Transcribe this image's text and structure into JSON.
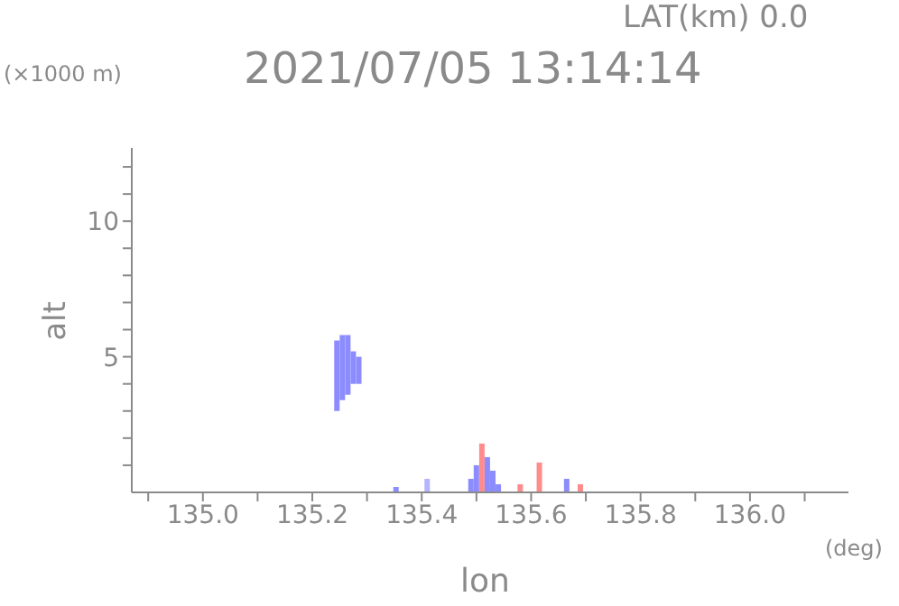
{
  "chart_data": {
    "type": "bar",
    "title": "2021/07/05 13:14:14",
    "subtitle": "LAT(km) 0.0",
    "xlabel": "lon",
    "ylabel": "alt",
    "annotations": [
      "(×1000 m)",
      "(deg)"
    ],
    "x": [
      135.245,
      135.255,
      135.265,
      135.275,
      135.285,
      135.353,
      135.41,
      135.49,
      135.5,
      135.51,
      135.52,
      135.53,
      135.54,
      135.58,
      135.615,
      135.665,
      135.69
    ],
    "base": [
      3.0,
      3.4,
      3.6,
      4.0,
      4.0,
      0,
      0,
      0,
      0,
      0,
      0,
      0,
      0,
      0,
      0,
      0,
      0
    ],
    "values": [
      2.6,
      2.4,
      2.2,
      1.2,
      1.0,
      0.2,
      0.5,
      0.5,
      1.0,
      1.8,
      1.3,
      0.8,
      0.3,
      0.3,
      1.1,
      0.5,
      0.3
    ],
    "colors": [
      "#8c8cff",
      "#8c8cff",
      "#8c8cff",
      "#8c8cff",
      "#8c8cff",
      "#8c8cff",
      "#b4b4ff",
      "#8c8cff",
      "#8c8cff",
      "#ff8c8c",
      "#8c8cff",
      "#8c8cff",
      "#8c8cff",
      "#ff8c8c",
      "#ff8c8c",
      "#8c8cff",
      "#ff8c8c"
    ],
    "xlim": [
      134.87,
      136.18
    ],
    "xticks": [
      {
        "value": 134.9,
        "label": null
      },
      {
        "value": 135.0,
        "label": "135.0"
      },
      {
        "value": 135.1,
        "label": null
      },
      135.2,
      {
        "value": 135.3,
        "label": null
      },
      135.4,
      {
        "value": 135.5,
        "label": null
      },
      135.6,
      {
        "value": 135.7,
        "label": null
      },
      135.8,
      {
        "value": 135.9,
        "label": null
      },
      {
        "value": 136.0,
        "label": "136.0"
      },
      {
        "value": 136.1,
        "label": null
      }
    ],
    "ylim": [
      0,
      12.7
    ],
    "yticks": [
      {
        "value": 1,
        "label": null
      },
      {
        "value": 2,
        "label": null
      },
      {
        "value": 3,
        "label": null
      },
      {
        "value": 4,
        "label": null
      },
      5,
      {
        "value": 6,
        "label": null
      },
      {
        "value": 7,
        "label": null
      },
      {
        "value": 8,
        "label": null
      },
      {
        "value": 9,
        "label": null
      },
      10,
      {
        "value": 11,
        "label": null
      },
      {
        "value": 12,
        "label": null
      }
    ],
    "grid": false,
    "legend": false
  }
}
